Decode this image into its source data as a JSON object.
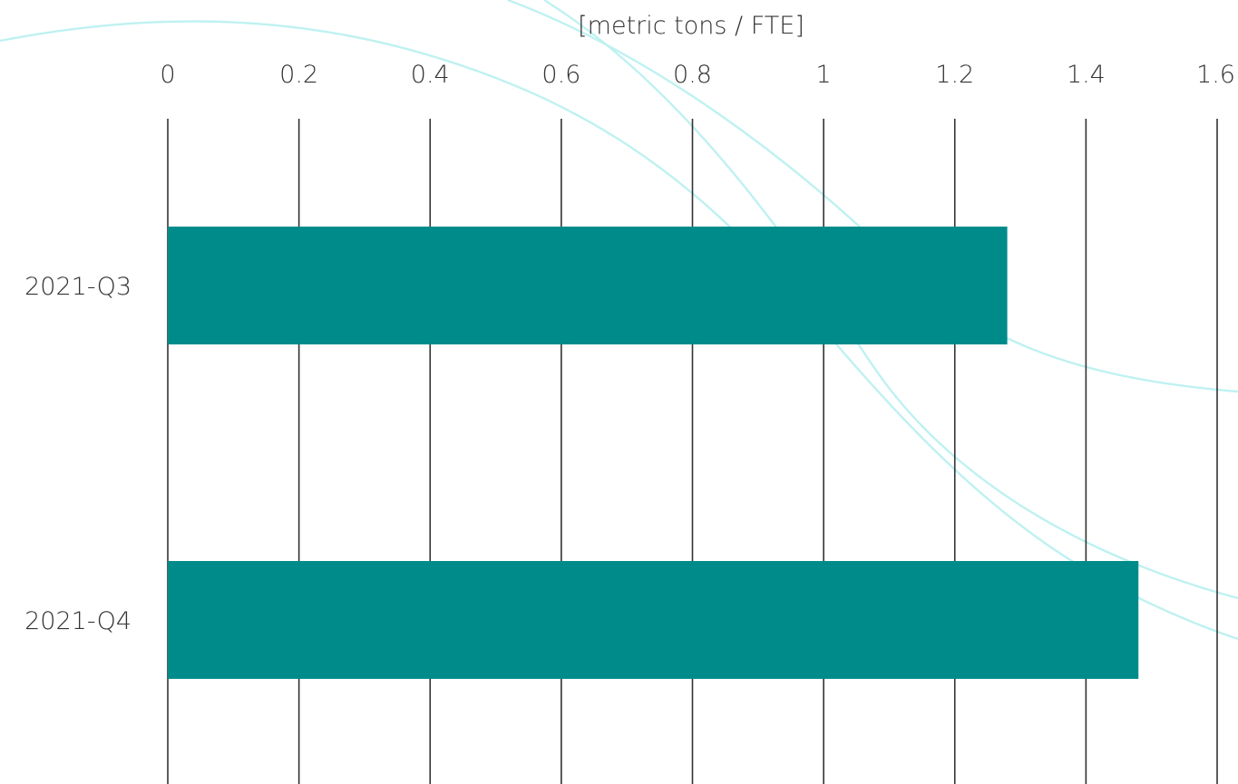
{
  "chart_data": {
    "type": "bar",
    "orientation": "horizontal",
    "title": "",
    "xlabel": "[metric tons / FTE]",
    "ylabel": "",
    "categories": [
      "2021-Q3",
      "2021-Q4"
    ],
    "values": [
      1.28,
      1.48
    ],
    "xlim": [
      0,
      1.6
    ],
    "x_ticks": [
      "0",
      "0.2",
      "0.4",
      "0.6",
      "0.8",
      "1",
      "1.2",
      "1.4",
      "1.6"
    ],
    "x_axis_position": "top",
    "grid": true,
    "bar_color": "#008b8b",
    "legend": "none"
  }
}
